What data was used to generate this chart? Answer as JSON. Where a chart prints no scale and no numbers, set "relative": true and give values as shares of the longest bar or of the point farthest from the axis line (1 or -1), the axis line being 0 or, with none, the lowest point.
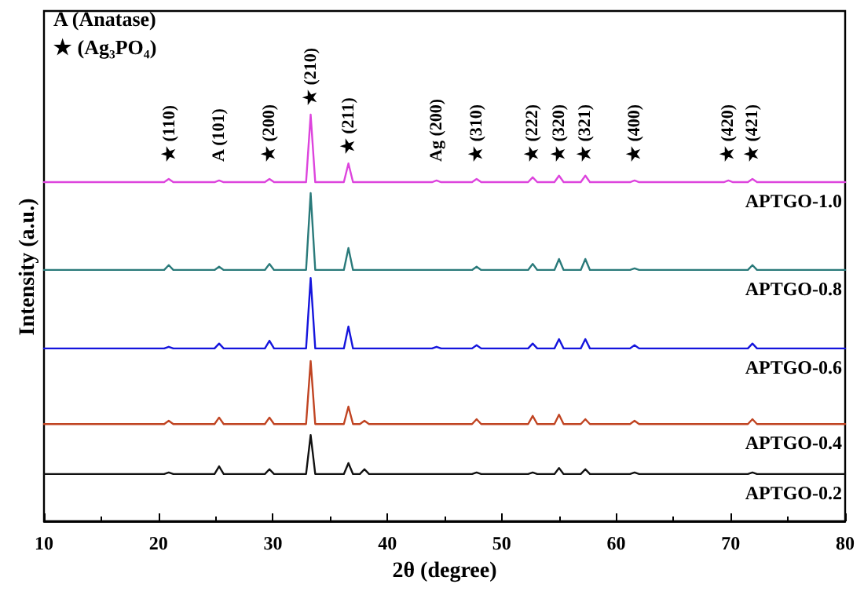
{
  "chart_data": {
    "type": "line",
    "relative": true,
    "xlabel": "2θ (degree)",
    "ylabel": "Intensity (a.u.)",
    "xlim": [
      10,
      80
    ],
    "xticks": [
      10,
      20,
      30,
      40,
      50,
      60,
      70,
      80
    ],
    "legend": false,
    "grid": false,
    "marker": "none",
    "line_style": "solid",
    "x": [
      10,
      20.5,
      20.9,
      21.3,
      24.9,
      25.3,
      25.7,
      29.3,
      29.7,
      30.1,
      32.9,
      33.3,
      33.7,
      36.2,
      36.6,
      37,
      37.6,
      38,
      38.4,
      43.9,
      44.3,
      44.7,
      47.4,
      47.8,
      48.2,
      52.3,
      52.7,
      53.1,
      54.6,
      55,
      55.4,
      56.9,
      57.3,
      57.7,
      61.2,
      61.6,
      62,
      69.4,
      69.8,
      70.2,
      71.5,
      71.9,
      72.3,
      80
    ],
    "series": [
      {
        "name": "APTGO-1.0",
        "color": "#dd44dd",
        "values": [
          0.834,
          0.834,
          0.842,
          0.834,
          0.834,
          0.838,
          0.834,
          0.834,
          0.842,
          0.834,
          0.834,
          1,
          0.834,
          0.834,
          0.88,
          0.834,
          0.834,
          0.834,
          0.834,
          0.834,
          0.838,
          0.834,
          0.834,
          0.842,
          0.834,
          0.834,
          0.846,
          0.834,
          0.834,
          0.85,
          0.834,
          0.834,
          0.85,
          0.834,
          0.834,
          0.838,
          0.834,
          0.834,
          0.838,
          0.834,
          0.834,
          0.842,
          0.834,
          0.834
        ]
      },
      {
        "name": "APTGO-0.8",
        "color": "#2a7a7a",
        "values": [
          0.618,
          0.618,
          0.63,
          0.618,
          0.618,
          0.626,
          0.618,
          0.618,
          0.633,
          0.618,
          0.618,
          0.807,
          0.618,
          0.618,
          0.672,
          0.618,
          0.618,
          0.618,
          0.618,
          0.618,
          0.618,
          0.618,
          0.618,
          0.626,
          0.618,
          0.618,
          0.633,
          0.618,
          0.618,
          0.645,
          0.618,
          0.618,
          0.645,
          0.618,
          0.618,
          0.622,
          0.618,
          0.618,
          0.618,
          0.618,
          0.618,
          0.63,
          0.618,
          0.618
        ]
      },
      {
        "name": "APTGO-0.6",
        "color": "#1515dd",
        "values": [
          0.425,
          0.425,
          0.429,
          0.425,
          0.425,
          0.437,
          0.425,
          0.425,
          0.444,
          0.425,
          0.425,
          0.598,
          0.425,
          0.425,
          0.479,
          0.425,
          0.425,
          0.425,
          0.425,
          0.425,
          0.429,
          0.425,
          0.425,
          0.433,
          0.425,
          0.425,
          0.437,
          0.425,
          0.425,
          0.448,
          0.425,
          0.425,
          0.448,
          0.425,
          0.425,
          0.433,
          0.425,
          0.425,
          0.425,
          0.425,
          0.425,
          0.437,
          0.425,
          0.425
        ]
      },
      {
        "name": "APTGO-0.4",
        "color": "#c04422",
        "values": [
          0.239,
          0.239,
          0.247,
          0.239,
          0.239,
          0.255,
          0.239,
          0.239,
          0.255,
          0.239,
          0.239,
          0.394,
          0.239,
          0.239,
          0.282,
          0.239,
          0.239,
          0.247,
          0.239,
          0.239,
          0.239,
          0.239,
          0.239,
          0.251,
          0.239,
          0.239,
          0.259,
          0.239,
          0.239,
          0.262,
          0.239,
          0.239,
          0.251,
          0.239,
          0.239,
          0.247,
          0.239,
          0.239,
          0.239,
          0.239,
          0.239,
          0.251,
          0.239,
          0.239
        ]
      },
      {
        "name": "APTGO-0.2",
        "color": "#111111",
        "values": [
          0.116,
          0.116,
          0.12,
          0.116,
          0.116,
          0.135,
          0.116,
          0.116,
          0.128,
          0.116,
          0.116,
          0.212,
          0.116,
          0.116,
          0.143,
          0.116,
          0.116,
          0.128,
          0.116,
          0.116,
          0.116,
          0.116,
          0.116,
          0.12,
          0.116,
          0.116,
          0.12,
          0.116,
          0.116,
          0.131,
          0.116,
          0.116,
          0.128,
          0.116,
          0.116,
          0.12,
          0.116,
          0.116,
          0.116,
          0.116,
          0.116,
          0.12,
          0.116,
          0.116
        ]
      }
    ],
    "annotations": [
      "A (Anatase)",
      "★ (Ag₃PO₄)",
      {
        "text": "★ (110)",
        "x": 21,
        "y": 0.842
      },
      {
        "text": "A (101)",
        "x": 25.3,
        "y": 0.838
      },
      {
        "text": "★ (200)",
        "x": 29.7,
        "y": 0.842
      },
      {
        "text": "★ (210)",
        "x": 33.3,
        "y": 1
      },
      {
        "text": "★ (211)",
        "x": 36.6,
        "y": 0.88
      },
      {
        "text": "Ag (200)",
        "x": 44.3,
        "y": 0.838
      },
      {
        "text": "★ (310)",
        "x": 47.8,
        "y": 0.842
      },
      {
        "text": "★ (222)",
        "x": 52.7,
        "y": 0.846
      },
      {
        "text": "★ (320)",
        "x": 55,
        "y": 0.85
      },
      {
        "text": "★ (321)",
        "x": 57.3,
        "y": 0.85
      },
      {
        "text": "★ (400)",
        "x": 61.6,
        "y": 0.838
      },
      {
        "text": "★ (420)",
        "x": 69.8,
        "y": 0.838
      },
      {
        "text": "★ (421)",
        "x": 71.9,
        "y": 0.842
      }
    ]
  }
}
